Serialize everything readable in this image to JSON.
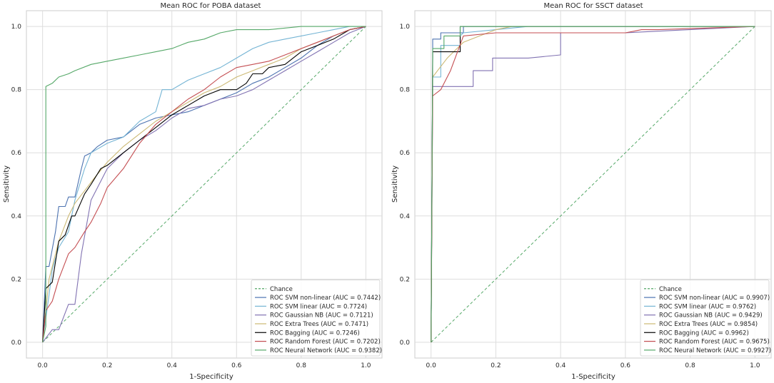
{
  "chart_data": [
    {
      "type": "line",
      "title": "Mean ROC for POBA dataset",
      "xlabel": "1-Specificity",
      "ylabel": "Sensitivity",
      "xlim": [
        -0.05,
        1.05
      ],
      "ylim": [
        -0.05,
        1.05
      ],
      "xticks": [
        "0.0",
        "0.2",
        "0.4",
        "0.6",
        "0.8",
        "1.0"
      ],
      "yticks": [
        "0.0",
        "0.2",
        "0.4",
        "0.6",
        "0.8",
        "1.0"
      ],
      "grid": true,
      "legend_position": "bottom-right",
      "series": [
        {
          "name": "Chance",
          "color": "#55a868",
          "style": "dashed",
          "x": [
            0,
            1
          ],
          "y": [
            0,
            1
          ]
        },
        {
          "name": "ROC SVM non-linear (AUC = 0.7442)",
          "color": "#4c72b0",
          "style": "solid",
          "x": [
            0,
            0.01,
            0.02,
            0.04,
            0.05,
            0.07,
            0.08,
            0.1,
            0.12,
            0.13,
            0.15,
            0.17,
            0.2,
            0.25,
            0.3,
            0.35,
            0.4,
            0.45,
            0.5,
            0.55,
            0.6,
            0.65,
            0.7,
            0.75,
            0.8,
            0.85,
            0.9,
            0.95,
            1.0
          ],
          "y": [
            0,
            0.24,
            0.24,
            0.35,
            0.43,
            0.43,
            0.46,
            0.46,
            0.55,
            0.59,
            0.6,
            0.62,
            0.64,
            0.65,
            0.69,
            0.71,
            0.72,
            0.73,
            0.75,
            0.77,
            0.79,
            0.82,
            0.84,
            0.87,
            0.9,
            0.94,
            0.97,
            0.99,
            1.0
          ]
        },
        {
          "name": "ROC SVM linear (AUC = 0.7724)",
          "color": "#74b4d4",
          "style": "solid",
          "x": [
            0,
            0.02,
            0.03,
            0.05,
            0.08,
            0.1,
            0.13,
            0.15,
            0.2,
            0.25,
            0.3,
            0.35,
            0.37,
            0.4,
            0.45,
            0.5,
            0.55,
            0.6,
            0.65,
            0.7,
            0.75,
            0.8,
            0.85,
            0.9,
            0.95,
            1.0
          ],
          "y": [
            0,
            0.15,
            0.23,
            0.3,
            0.35,
            0.45,
            0.55,
            0.6,
            0.63,
            0.65,
            0.7,
            0.73,
            0.8,
            0.8,
            0.83,
            0.85,
            0.87,
            0.9,
            0.93,
            0.95,
            0.96,
            0.97,
            0.98,
            0.99,
            1.0,
            1.0
          ]
        },
        {
          "name": "ROC Gaussian NB (AUC = 0.7121)",
          "color": "#8172b2",
          "style": "solid",
          "x": [
            0,
            0.03,
            0.05,
            0.08,
            0.1,
            0.12,
            0.15,
            0.2,
            0.25,
            0.3,
            0.35,
            0.4,
            0.45,
            0.5,
            0.55,
            0.6,
            0.65,
            0.7,
            0.75,
            0.8,
            0.85,
            0.9,
            0.95,
            1.0
          ],
          "y": [
            0,
            0.04,
            0.04,
            0.12,
            0.12,
            0.28,
            0.45,
            0.55,
            0.6,
            0.64,
            0.67,
            0.71,
            0.74,
            0.75,
            0.77,
            0.78,
            0.8,
            0.83,
            0.86,
            0.89,
            0.92,
            0.95,
            0.98,
            1.0
          ]
        },
        {
          "name": "ROC Extra Trees (AUC = 0.7471)",
          "color": "#ccb974",
          "style": "solid",
          "x": [
            0,
            0.02,
            0.05,
            0.08,
            0.1,
            0.13,
            0.16,
            0.2,
            0.25,
            0.3,
            0.35,
            0.4,
            0.45,
            0.5,
            0.55,
            0.6,
            0.65,
            0.7,
            0.75,
            0.8,
            0.85,
            0.9,
            0.95,
            1.0
          ],
          "y": [
            0,
            0.2,
            0.32,
            0.4,
            0.44,
            0.48,
            0.52,
            0.57,
            0.62,
            0.66,
            0.7,
            0.73,
            0.76,
            0.79,
            0.81,
            0.84,
            0.86,
            0.88,
            0.9,
            0.93,
            0.95,
            0.97,
            0.99,
            1.0
          ]
        },
        {
          "name": "ROC Bagging (AUC = 0.7246)",
          "color": "#000000",
          "style": "solid",
          "x": [
            0,
            0.01,
            0.03,
            0.05,
            0.07,
            0.09,
            0.1,
            0.13,
            0.15,
            0.18,
            0.2,
            0.25,
            0.3,
            0.35,
            0.4,
            0.45,
            0.5,
            0.55,
            0.6,
            0.63,
            0.65,
            0.68,
            0.7,
            0.75,
            0.8,
            0.85,
            0.9,
            0.95,
            1.0
          ],
          "y": [
            0,
            0.17,
            0.19,
            0.32,
            0.34,
            0.4,
            0.4,
            0.47,
            0.5,
            0.55,
            0.56,
            0.6,
            0.64,
            0.68,
            0.72,
            0.75,
            0.78,
            0.8,
            0.8,
            0.82,
            0.85,
            0.85,
            0.87,
            0.88,
            0.92,
            0.94,
            0.96,
            0.99,
            1.0
          ]
        },
        {
          "name": "ROC Random Forest (AUC = 0.7202)",
          "color": "#c44e52",
          "style": "solid",
          "x": [
            0,
            0.01,
            0.03,
            0.05,
            0.08,
            0.1,
            0.13,
            0.15,
            0.18,
            0.2,
            0.25,
            0.3,
            0.35,
            0.4,
            0.45,
            0.5,
            0.55,
            0.6,
            0.65,
            0.7,
            0.75,
            0.8,
            0.85,
            0.9,
            0.95,
            1.0
          ],
          "y": [
            0,
            0.1,
            0.13,
            0.2,
            0.28,
            0.3,
            0.35,
            0.38,
            0.44,
            0.49,
            0.55,
            0.63,
            0.69,
            0.73,
            0.77,
            0.8,
            0.84,
            0.87,
            0.88,
            0.89,
            0.91,
            0.93,
            0.95,
            0.97,
            0.99,
            1.0
          ]
        },
        {
          "name": "ROC Neural Network (AUC = 0.9382)",
          "color": "#55a868",
          "style": "solid",
          "x": [
            0,
            0.01,
            0.01,
            0.03,
            0.05,
            0.08,
            0.1,
            0.15,
            0.2,
            0.25,
            0.3,
            0.35,
            0.4,
            0.45,
            0.5,
            0.55,
            0.6,
            0.7,
            0.8,
            0.9,
            1.0
          ],
          "y": [
            0,
            0.05,
            0.81,
            0.82,
            0.84,
            0.85,
            0.86,
            0.88,
            0.89,
            0.9,
            0.91,
            0.92,
            0.93,
            0.95,
            0.96,
            0.98,
            0.99,
            0.99,
            1.0,
            1.0,
            1.0
          ]
        }
      ]
    },
    {
      "type": "line",
      "title": "Mean ROC for SSCT dataset",
      "xlabel": "1-Specificity",
      "ylabel": "Sensitivity",
      "xlim": [
        -0.05,
        1.05
      ],
      "ylim": [
        -0.05,
        1.05
      ],
      "xticks": [
        "0.0",
        "0.2",
        "0.4",
        "0.6",
        "0.8",
        "1.0"
      ],
      "yticks": [
        "0.0",
        "0.2",
        "0.4",
        "0.6",
        "0.8",
        "1.0"
      ],
      "grid": true,
      "legend_position": "bottom-right",
      "series": [
        {
          "name": "Chance",
          "color": "#55a868",
          "style": "dashed",
          "x": [
            0,
            1
          ],
          "y": [
            0,
            1
          ]
        },
        {
          "name": "ROC SVM non-linear (AUC = 0.9907)",
          "color": "#4c72b0",
          "style": "solid",
          "x": [
            0,
            0.005,
            0.005,
            0.03,
            0.03,
            0.1,
            0.1,
            1.0
          ],
          "y": [
            0,
            0.9,
            0.96,
            0.96,
            0.98,
            0.98,
            1.0,
            1.0
          ]
        },
        {
          "name": "ROC SVM linear (AUC = 0.9762)",
          "color": "#74b4d4",
          "style": "solid",
          "x": [
            0,
            0.005,
            0.005,
            0.03,
            0.03,
            0.09,
            0.09,
            0.1,
            0.2,
            0.3,
            1.0
          ],
          "y": [
            0,
            0.83,
            0.84,
            0.84,
            0.94,
            0.94,
            0.97,
            0.98,
            0.99,
            1.0,
            1.0
          ]
        },
        {
          "name": "ROC Gaussian NB (AUC = 0.9429)",
          "color": "#8172b2",
          "style": "solid",
          "x": [
            0,
            0.005,
            0.005,
            0.13,
            0.13,
            0.19,
            0.19,
            0.3,
            0.4,
            0.4,
            0.5,
            0.6,
            1.0
          ],
          "y": [
            0,
            0.8,
            0.81,
            0.81,
            0.86,
            0.86,
            0.9,
            0.9,
            0.91,
            0.98,
            0.98,
            0.98,
            1.0
          ]
        },
        {
          "name": "ROC Extra Trees (AUC = 0.9854)",
          "color": "#ccb974",
          "style": "solid",
          "x": [
            0,
            0.005,
            0.02,
            0.05,
            0.1,
            0.15,
            0.2,
            0.25,
            0.3,
            1.0
          ],
          "y": [
            0,
            0.84,
            0.86,
            0.9,
            0.95,
            0.97,
            0.99,
            1.0,
            1.0,
            1.0
          ]
        },
        {
          "name": "ROC Bagging (AUC = 0.9962)",
          "color": "#000000",
          "style": "solid",
          "x": [
            0,
            0.005,
            0.005,
            0.09,
            0.09,
            1.0
          ],
          "y": [
            0,
            0.9,
            0.92,
            0.92,
            1.0,
            1.0
          ]
        },
        {
          "name": "ROC Random Forest (AUC = 0.9675)",
          "color": "#c44e52",
          "style": "solid",
          "x": [
            0,
            0.005,
            0.03,
            0.06,
            0.1,
            0.2,
            0.3,
            0.4,
            0.5,
            0.6,
            0.65,
            0.7,
            1.0
          ],
          "y": [
            0,
            0.78,
            0.8,
            0.86,
            0.97,
            0.98,
            0.98,
            0.98,
            0.98,
            0.98,
            0.99,
            0.99,
            1.0
          ]
        },
        {
          "name": "ROC Neural Network (AUC = 0.9927)",
          "color": "#55a868",
          "style": "solid",
          "x": [
            0,
            0.005,
            0.005,
            0.04,
            0.04,
            0.09,
            0.09,
            1.0
          ],
          "y": [
            0,
            0.88,
            0.93,
            0.93,
            0.97,
            0.97,
            1.0,
            1.0
          ]
        }
      ]
    }
  ]
}
